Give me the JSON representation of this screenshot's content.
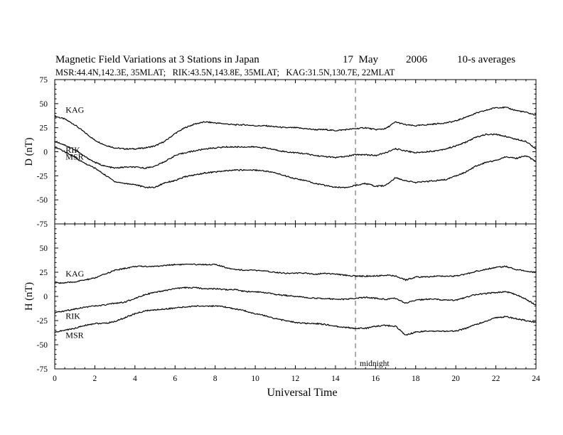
{
  "title": {
    "main": "Magnetic Field Variations at 3 Stations in Japan",
    "date": "17  May",
    "year": "2006",
    "averaging": "10-s averages",
    "stations_line": "MSR:44.4N,142.3E, 35MLAT;   RIK:43.5N,143.8E, 35MLAT;   KAG:31.5N,130.7E, 22MLAT"
  },
  "annotation": {
    "midnight": "midnight"
  },
  "chart_data": [
    {
      "type": "line",
      "panel": "top",
      "ylabel": "D (nT)",
      "xlabel": "",
      "xlim": [
        0,
        24
      ],
      "ylim": [
        -75,
        75
      ],
      "xticks": [
        0,
        2,
        4,
        6,
        8,
        10,
        12,
        14,
        16,
        18,
        20,
        22,
        24
      ],
      "yticks": [
        -75,
        -50,
        -25,
        0,
        25,
        50,
        75
      ],
      "x": [
        0,
        0.5,
        1,
        1.5,
        2,
        2.5,
        3,
        3.5,
        4,
        4.5,
        5,
        5.5,
        6,
        6.5,
        7,
        7.5,
        8,
        8.5,
        9,
        9.5,
        10,
        10.5,
        11,
        11.5,
        12,
        12.5,
        13,
        13.5,
        14,
        14.5,
        15,
        15.5,
        16,
        16.5,
        17,
        17.5,
        18,
        18.5,
        19,
        19.5,
        20,
        20.5,
        21,
        21.5,
        22,
        22.5,
        23,
        23.5,
        24
      ],
      "series": [
        {
          "name": "KAG",
          "values": [
            37,
            34,
            28,
            20,
            12,
            7,
            4,
            3,
            3,
            4,
            6,
            11,
            19,
            25,
            29,
            31,
            30,
            29,
            28,
            28,
            27,
            27,
            26,
            25,
            25,
            24,
            23,
            23,
            22,
            23,
            24,
            25,
            23,
            24,
            31,
            28,
            27,
            28,
            29,
            30,
            32,
            36,
            40,
            43,
            46,
            46,
            43,
            41,
            38
          ]
        },
        {
          "name": "RIK",
          "values": [
            11,
            7,
            2,
            -5,
            -11,
            -15,
            -17,
            -16,
            -16,
            -17,
            -15,
            -10,
            -4,
            -1,
            1,
            3,
            4,
            5,
            5,
            5,
            5,
            4,
            2,
            0,
            -1,
            -2,
            -4,
            -5,
            -6,
            -5,
            -3,
            -3,
            -4,
            -1,
            3,
            1,
            -1,
            0,
            1,
            3,
            6,
            10,
            15,
            18,
            18,
            16,
            13,
            11,
            3
          ]
        },
        {
          "name": "MSR",
          "values": [
            5,
            0,
            -6,
            -12,
            -17,
            -24,
            -31,
            -33,
            -34,
            -37,
            -37,
            -32,
            -30,
            -26,
            -24,
            -22,
            -21,
            -20,
            -19,
            -19,
            -19,
            -20,
            -22,
            -25,
            -28,
            -30,
            -33,
            -35,
            -37,
            -37,
            -35,
            -33,
            -36,
            -35,
            -27,
            -30,
            -32,
            -31,
            -30,
            -29,
            -25,
            -21,
            -15,
            -11,
            -9,
            -5,
            -7,
            -4,
            -10
          ]
        }
      ]
    },
    {
      "type": "line",
      "panel": "bottom",
      "ylabel": "H (nT)",
      "xlabel": "Universal Time",
      "xlim": [
        0,
        24
      ],
      "ylim": [
        -75,
        75
      ],
      "xticks": [
        0,
        2,
        4,
        6,
        8,
        10,
        12,
        14,
        16,
        18,
        20,
        22,
        24
      ],
      "yticks": [
        -75,
        -50,
        -25,
        0,
        25,
        50,
        75
      ],
      "x": [
        0,
        0.5,
        1,
        1.5,
        2,
        2.5,
        3,
        3.5,
        4,
        4.5,
        5,
        5.5,
        6,
        6.5,
        7,
        7.5,
        8,
        8.5,
        9,
        9.5,
        10,
        10.5,
        11,
        11.5,
        12,
        12.5,
        13,
        13.5,
        14,
        14.5,
        15,
        15.5,
        16,
        16.5,
        17,
        17.5,
        18,
        18.5,
        19,
        19.5,
        20,
        20.5,
        21,
        21.5,
        22,
        22.5,
        23,
        23.5,
        24
      ],
      "series": [
        {
          "name": "KAG",
          "values": [
            14,
            14,
            15,
            17,
            19,
            23,
            27,
            29,
            31,
            31,
            31,
            32,
            33,
            33,
            33,
            33,
            33,
            30,
            28,
            27,
            27,
            26,
            25,
            24,
            24,
            24,
            23,
            24,
            23,
            22,
            21,
            21,
            21,
            22,
            21,
            17,
            20,
            20,
            21,
            21,
            21,
            23,
            26,
            28,
            30,
            31,
            28,
            26,
            25
          ]
        },
        {
          "name": "RIK",
          "values": [
            -17,
            -15,
            -13,
            -11,
            -10,
            -9,
            -7,
            -6,
            -2,
            2,
            4,
            6,
            8,
            9,
            9,
            8,
            8,
            7,
            7,
            5,
            5,
            4,
            2,
            1,
            0,
            -1,
            -2,
            -2,
            -3,
            -3,
            -2,
            -1,
            -2,
            -3,
            -2,
            -7,
            -4,
            -3,
            -3,
            -4,
            -4,
            -1,
            2,
            3,
            4,
            5,
            2,
            -3,
            -9
          ]
        },
        {
          "name": "MSR",
          "values": [
            -37,
            -35,
            -33,
            -30,
            -28,
            -28,
            -26,
            -22,
            -18,
            -15,
            -14,
            -13,
            -12,
            -11,
            -10,
            -10,
            -10,
            -11,
            -13,
            -15,
            -18,
            -20,
            -23,
            -25,
            -27,
            -28,
            -28,
            -29,
            -31,
            -32,
            -33,
            -33,
            -31,
            -30,
            -31,
            -40,
            -37,
            -36,
            -36,
            -36,
            -36,
            -33,
            -29,
            -26,
            -22,
            -21,
            -23,
            -25,
            -27
          ]
        }
      ]
    }
  ]
}
